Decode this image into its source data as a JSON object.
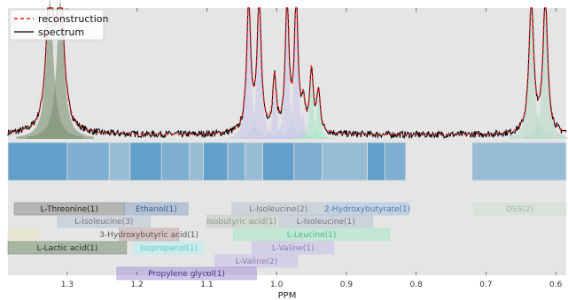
{
  "chart_data": {
    "type": "line",
    "xlabel": "PPM",
    "xlim": [
      1.385,
      0.585
    ],
    "x_reversed": true,
    "xticks": [
      {
        "value": 1.3,
        "label": "1.3"
      },
      {
        "value": 1.2,
        "label": "1.2"
      },
      {
        "value": 1.1,
        "label": "1.1"
      },
      {
        "value": 1.0,
        "label": "1.0"
      },
      {
        "value": 0.9,
        "label": "0.9"
      },
      {
        "value": 0.8,
        "label": "0.8"
      },
      {
        "value": 0.7,
        "label": "0.7"
      },
      {
        "value": 0.6,
        "label": "0.6"
      }
    ],
    "legend": {
      "placement": "top-left",
      "entries": [
        {
          "label": "reconstruction",
          "color": "#e41a1c",
          "style": "dashed"
        },
        {
          "label": "spectrum",
          "color": "#000000",
          "style": "solid"
        }
      ]
    },
    "baseline_level": 0.03,
    "peaks": [
      {
        "ppm": 1.325,
        "height": 1.05,
        "width": 0.006,
        "fill": "#7a8f6f"
      },
      {
        "ppm": 1.31,
        "height": 1.05,
        "width": 0.006,
        "fill": "#7a8f6f"
      },
      {
        "ppm": 1.04,
        "height": 0.98,
        "width": 0.0035,
        "fill": "#c9c9e8"
      },
      {
        "ppm": 1.025,
        "height": 0.98,
        "width": 0.0035,
        "fill": "#c9c9e8"
      },
      {
        "ppm": 1.003,
        "height": 0.4,
        "width": 0.003,
        "fill": "#c9c9e8"
      },
      {
        "ppm": 0.985,
        "height": 1.0,
        "width": 0.003,
        "fill": "#c9c9e8"
      },
      {
        "ppm": 0.972,
        "height": 1.0,
        "width": 0.003,
        "fill": "#c9c9e8"
      },
      {
        "ppm": 0.962,
        "height": 0.2,
        "width": 0.003,
        "fill": "#c9c9e8"
      },
      {
        "ppm": 0.95,
        "height": 0.45,
        "width": 0.003,
        "fill": "#a8e8c8"
      },
      {
        "ppm": 0.94,
        "height": 0.3,
        "width": 0.003,
        "fill": "#a8e8c8"
      },
      {
        "ppm": 0.635,
        "height": 1.0,
        "width": 0.004,
        "fill": "#b8d8c8"
      },
      {
        "ppm": 0.615,
        "height": 1.0,
        "width": 0.004,
        "fill": "#b8d8c8"
      }
    ],
    "bin_bar": {
      "color": "#5b9bc8",
      "segments": [
        [
          1.385,
          1.3
        ],
        [
          1.3,
          1.24
        ],
        [
          1.24,
          1.21
        ],
        [
          1.21,
          1.165
        ],
        [
          1.165,
          1.125
        ],
        [
          1.125,
          1.105
        ],
        [
          1.105,
          1.07
        ],
        [
          1.07,
          1.045
        ],
        [
          1.045,
          1.02
        ],
        [
          1.02,
          0.975
        ],
        [
          0.975,
          0.935
        ],
        [
          0.935,
          0.87
        ],
        [
          0.87,
          0.845
        ],
        [
          0.845,
          0.815
        ],
        [
          0.72,
          0.585
        ]
      ]
    },
    "bands": [
      {
        "label": "L-Threonine(1)",
        "ppm_left": 1.376,
        "ppm_right": 1.218,
        "row": 0,
        "fill": "#8c8c8c",
        "text_color": "#222222"
      },
      {
        "label": "Ethanol(1)",
        "ppm_left": 1.218,
        "ppm_right": 1.127,
        "row": 0,
        "fill": "#8fa8c8",
        "text_color": "#3b5a8a"
      },
      {
        "label": "L-Isoleucine(2)",
        "ppm_left": 1.064,
        "ppm_right": 0.931,
        "row": 0,
        "fill": "#b8c4d4",
        "text_color": "#777777"
      },
      {
        "label": "2-Hydroxybutyrate(1)",
        "ppm_left": 0.929,
        "ppm_right": 0.811,
        "row": 0,
        "fill": "#a8c4e4",
        "text_color": "#5577aa"
      },
      {
        "label": "DSS(2)",
        "ppm_left": 0.718,
        "ppm_right": 0.585,
        "row": 0,
        "fill": "#cde0d4",
        "text_color": "#9ab8a8"
      },
      {
        "label": "L-Isoleucine(3)",
        "ppm_left": 1.314,
        "ppm_right": 1.181,
        "row": 1,
        "fill": "#b8c4d4",
        "text_color": "#777777"
      },
      {
        "label": "Isobutyric acid(1)",
        "ppm_left": 1.1,
        "ppm_right": 1.0,
        "row": 1,
        "fill": "#c4ccc4",
        "text_color": "#8a9a8a"
      },
      {
        "label": "L-Isoleucine(1)",
        "ppm_left": 0.997,
        "ppm_right": 0.862,
        "row": 1,
        "fill": "#b8c4d4",
        "text_color": "#777777"
      },
      {
        "label": "",
        "ppm_left": 1.385,
        "ppm_right": 1.34,
        "row": 2,
        "fill": "#e8e8c0",
        "text_color": "#777777"
      },
      {
        "label": "3-Hydroxybutyric acid(1)",
        "ppm_left": 1.226,
        "ppm_right": 1.14,
        "row": 2,
        "fill": "#c8a8a8",
        "text_color": "#555555"
      },
      {
        "label": "L-Leucine(1)",
        "ppm_left": 1.062,
        "ppm_right": 0.838,
        "row": 2,
        "fill": "#a8e8c8",
        "text_color": "#44bb88"
      },
      {
        "label": "L-Lactic acid(1)",
        "ppm_left": 1.385,
        "ppm_right": 1.215,
        "row": 3,
        "fill": "#7a8f6f",
        "text_color": "#223322"
      },
      {
        "label": "Isopropanol(1)",
        "ppm_left": 1.205,
        "ppm_right": 1.104,
        "row": 3,
        "fill": "#b8f0f0",
        "text_color": "#55cccc"
      },
      {
        "label": "L-Valine(1)",
        "ppm_left": 1.035,
        "ppm_right": 0.918,
        "row": 3,
        "fill": "#c9c0e8",
        "text_color": "#8877bb"
      },
      {
        "label": "L-Valine(2)",
        "ppm_left": 1.088,
        "ppm_right": 0.97,
        "row": 4,
        "fill": "#c9c0e8",
        "text_color": "#8877bb"
      },
      {
        "label": "Propylene glycol(1)",
        "ppm_left": 1.229,
        "ppm_right": 1.029,
        "row": 5,
        "fill": "#a898d8",
        "text_color": "#443388"
      }
    ]
  }
}
